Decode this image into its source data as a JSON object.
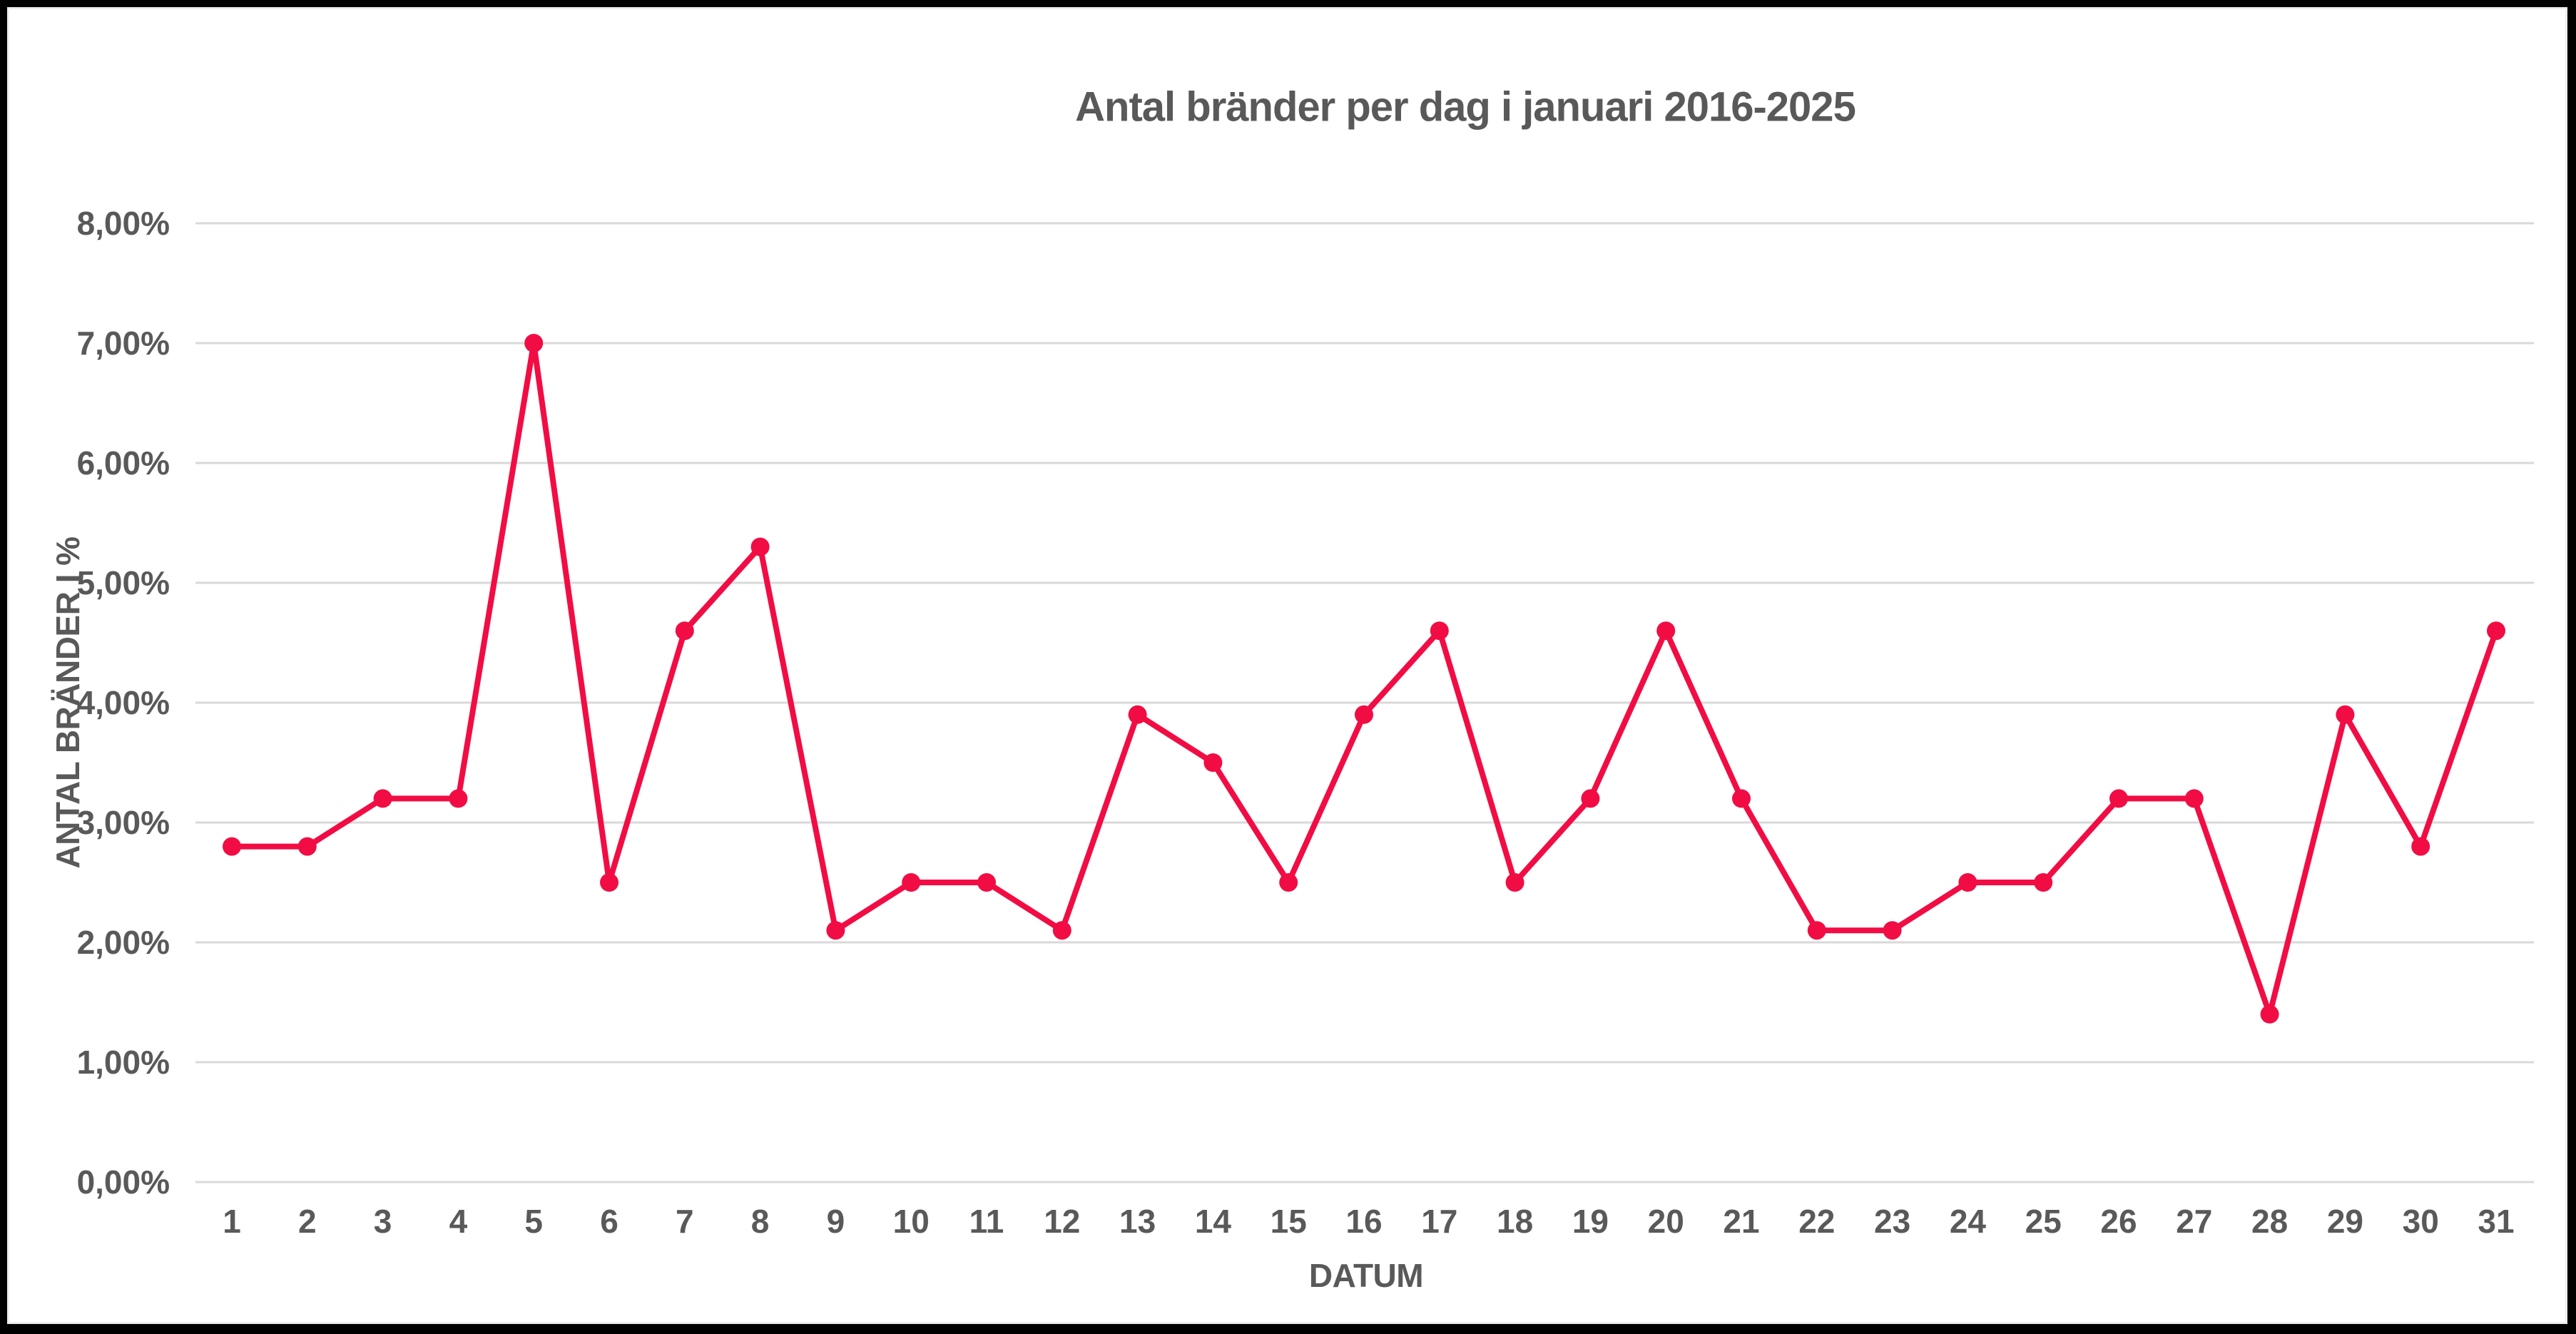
{
  "frame": {
    "border_color": "#000000",
    "inner_edge_color": "#EDEDED",
    "background": "#FFFFFF"
  },
  "chart_data": {
    "type": "line",
    "title": "Antal bränder per dag i januari 2016-2025",
    "xlabel": "DATUM",
    "ylabel": "ANTAL BRÄNDER I %",
    "categories": [
      "1",
      "2",
      "3",
      "4",
      "5",
      "6",
      "7",
      "8",
      "9",
      "10",
      "11",
      "12",
      "13",
      "14",
      "15",
      "16",
      "17",
      "18",
      "19",
      "20",
      "21",
      "22",
      "23",
      "24",
      "25",
      "26",
      "27",
      "28",
      "29",
      "30",
      "31"
    ],
    "series": [
      {
        "values": [
          2.8,
          2.8,
          3.2,
          3.2,
          7.0,
          2.5,
          4.6,
          5.3,
          2.1,
          2.5,
          2.5,
          2.1,
          3.9,
          3.5,
          2.5,
          3.9,
          4.6,
          2.5,
          3.2,
          4.6,
          3.2,
          2.1,
          2.1,
          2.5,
          2.5,
          3.2,
          3.2,
          1.4,
          3.9,
          2.8,
          4.6
        ],
        "color": "#F10D44",
        "marker": "circle"
      }
    ],
    "ylim": [
      0,
      8
    ],
    "ytick_labels": [
      "0,00%",
      "1,00%",
      "2,00%",
      "3,00%",
      "4,00%",
      "5,00%",
      "6,00%",
      "7,00%",
      "8,00%"
    ],
    "grid": true,
    "legend_position": "none",
    "text_color": "#595959",
    "gridline_color": "#D9D9D9"
  }
}
